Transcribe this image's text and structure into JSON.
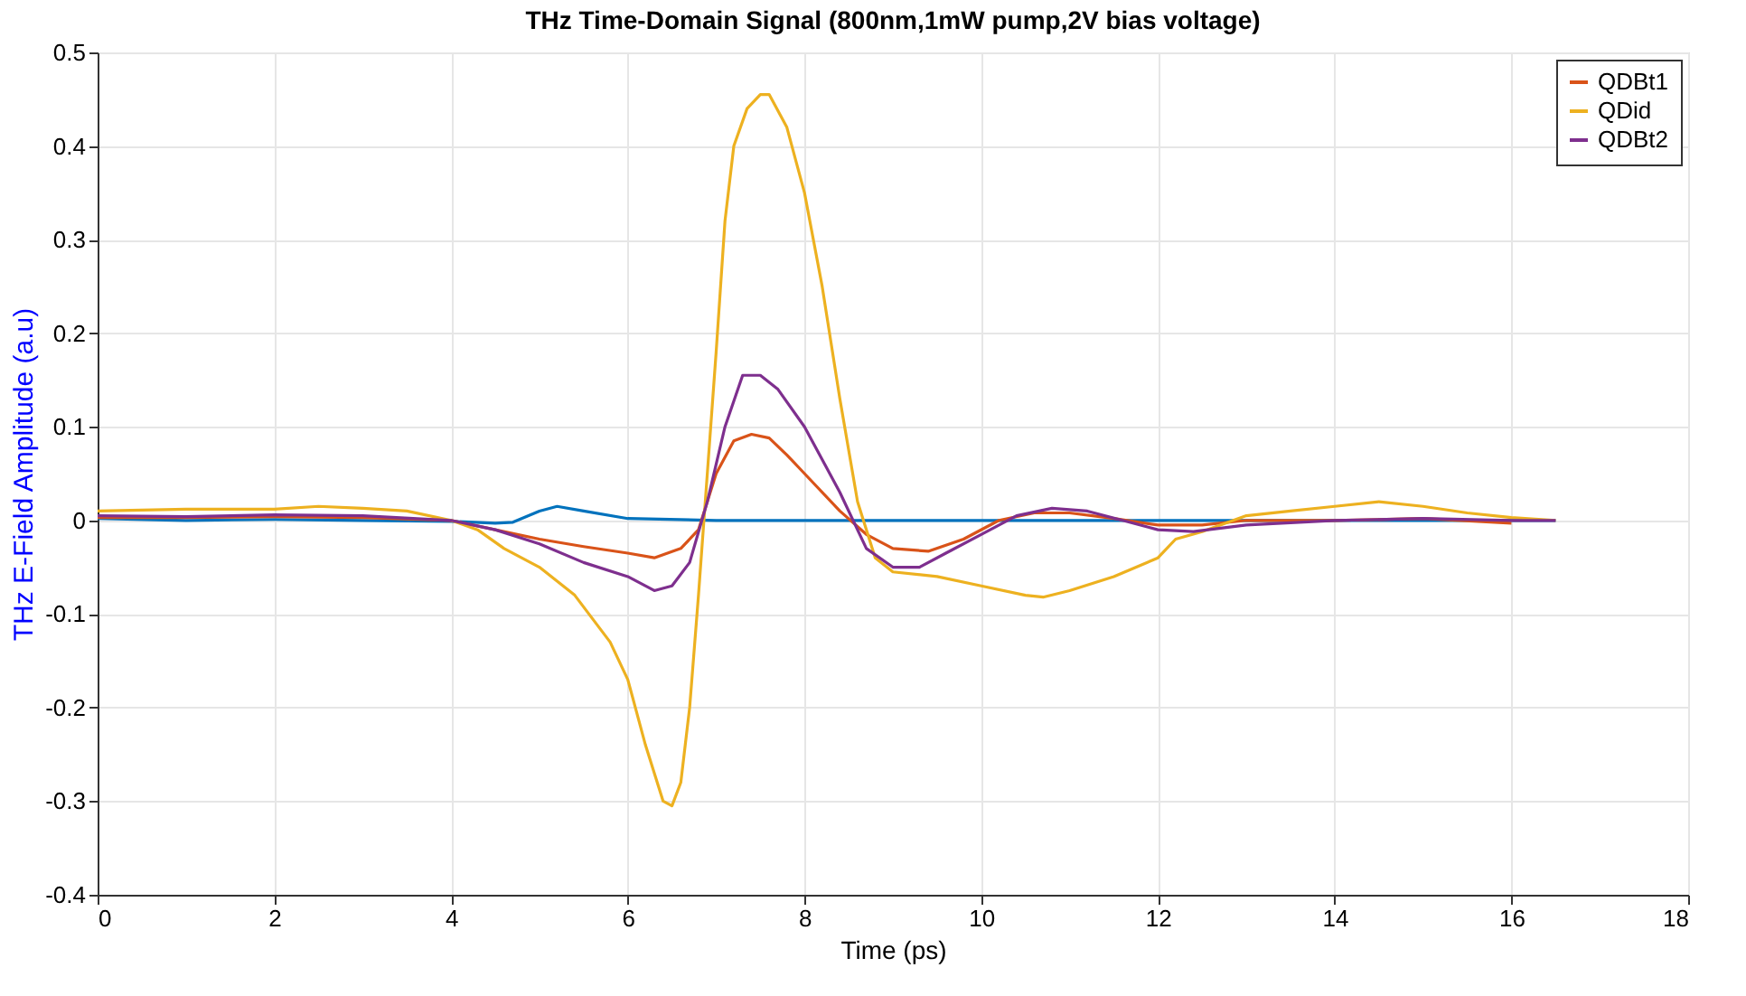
{
  "chart_data": {
    "type": "line",
    "title": "THz Time-Domain Signal (800nm,1mW pump,2V bias voltage)",
    "xlabel": "Time (ps)",
    "ylabel": "THz E-Field Amplitude (a.u)",
    "xlim": [
      0,
      18
    ],
    "xticks": [
      0,
      2,
      4,
      6,
      8,
      10,
      12,
      14,
      16,
      18
    ],
    "ylim": [
      -0.4,
      0.5
    ],
    "yticks": [
      -0.4,
      -0.3,
      -0.2,
      -0.1,
      {
        "value": 0,
        "label": "0"
      },
      0.1,
      0.2,
      0.3,
      0.4,
      0.5
    ],
    "grid": true,
    "legend": "top right",
    "line_style": "solid",
    "marker": "none",
    "series": [
      {
        "color": "#0072bd",
        "x": [
          0,
          1,
          2,
          3,
          4,
          4.5,
          4.7,
          5.0,
          5.2,
          5.5,
          6,
          7,
          8,
          9,
          10,
          11,
          12,
          13,
          14,
          15,
          16,
          16.5
        ],
        "values": [
          0.002,
          0,
          0.001,
          0,
          -0.001,
          -0.003,
          -0.002,
          0.01,
          0.015,
          0.01,
          0.002,
          0,
          0,
          0,
          0,
          0,
          0,
          0,
          0,
          0,
          0,
          0
        ]
      },
      {
        "name": "QDBt1",
        "color": "#d95319",
        "x": [
          0,
          1,
          2,
          3,
          4,
          4.5,
          5,
          5.5,
          6,
          6.3,
          6.6,
          6.8,
          7.0,
          7.2,
          7.4,
          7.6,
          7.8,
          8.0,
          8.4,
          8.7,
          9.0,
          9.4,
          9.8,
          10.2,
          10.6,
          11,
          11.5,
          12,
          12.5,
          13,
          14,
          15,
          16
        ],
        "values": [
          0.003,
          0.003,
          0.004,
          0.003,
          0,
          -0.01,
          -0.02,
          -0.028,
          -0.035,
          -0.04,
          -0.03,
          -0.01,
          0.05,
          0.085,
          0.092,
          0.088,
          0.07,
          0.05,
          0.01,
          -0.015,
          -0.03,
          -0.033,
          -0.02,
          0,
          0.008,
          0.008,
          0.002,
          -0.005,
          -0.005,
          0,
          0,
          0.002,
          -0.003
        ]
      },
      {
        "name": "QDid",
        "color": "#edb120",
        "x": [
          0,
          1,
          2,
          2.5,
          3,
          3.5,
          4,
          4.3,
          4.6,
          5.0,
          5.4,
          5.8,
          6.0,
          6.2,
          6.4,
          6.5,
          6.6,
          6.7,
          6.8,
          6.9,
          7.0,
          7.1,
          7.2,
          7.35,
          7.5,
          7.6,
          7.8,
          8.0,
          8.2,
          8.4,
          8.6,
          8.8,
          9.0,
          9.5,
          10,
          10.5,
          10.7,
          11,
          11.5,
          12,
          12.2,
          12.5,
          13,
          13.5,
          14,
          14.5,
          15,
          15.5,
          16,
          16.5
        ],
        "values": [
          0.01,
          0.012,
          0.012,
          0.015,
          0.013,
          0.01,
          0,
          -0.01,
          -0.03,
          -0.05,
          -0.08,
          -0.13,
          -0.17,
          -0.24,
          -0.3,
          -0.305,
          -0.28,
          -0.2,
          -0.08,
          0.05,
          0.18,
          0.32,
          0.4,
          0.44,
          0.455,
          0.455,
          0.42,
          0.35,
          0.25,
          0.13,
          0.02,
          -0.04,
          -0.055,
          -0.06,
          -0.07,
          -0.08,
          -0.082,
          -0.075,
          -0.06,
          -0.04,
          -0.02,
          -0.012,
          0.005,
          0.01,
          0.015,
          0.02,
          0.015,
          0.008,
          0.003,
          0
        ]
      },
      {
        "name": "QDBt2",
        "color": "#7e2f8e",
        "x": [
          0,
          1,
          2,
          3,
          4,
          4.5,
          5,
          5.5,
          6,
          6.3,
          6.5,
          6.7,
          6.9,
          7.1,
          7.3,
          7.5,
          7.7,
          8.0,
          8.4,
          8.7,
          9.0,
          9.3,
          9.6,
          10,
          10.4,
          10.8,
          11.2,
          11.6,
          12,
          12.4,
          13,
          14,
          15,
          16,
          16.5
        ],
        "values": [
          0.005,
          0.004,
          0.006,
          0.005,
          0,
          -0.01,
          -0.025,
          -0.045,
          -0.06,
          -0.075,
          -0.07,
          -0.045,
          0.02,
          0.1,
          0.155,
          0.155,
          0.14,
          0.1,
          0.03,
          -0.03,
          -0.05,
          -0.05,
          -0.035,
          -0.015,
          0.005,
          0.013,
          0.01,
          0,
          -0.01,
          -0.012,
          -0.005,
          0,
          0.002,
          0,
          0
        ]
      }
    ]
  }
}
